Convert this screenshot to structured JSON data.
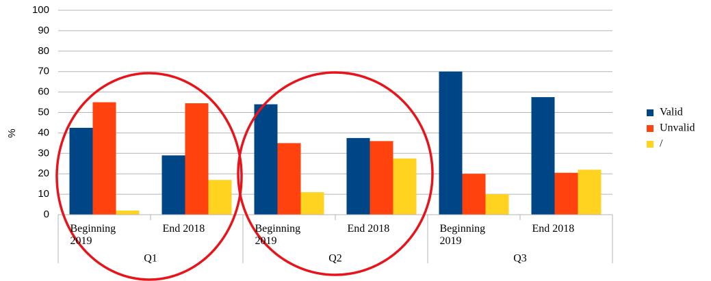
{
  "chart_data": {
    "type": "bar",
    "y_label": "%",
    "groups": [
      "Q1",
      "Q2",
      "Q3"
    ],
    "categories": [
      "Beginning 2019",
      "End 2018",
      "Beginning 2019",
      "End 2018",
      "Beginning 2019",
      "End 2018"
    ],
    "series": [
      {
        "name": "Valid",
        "color": "#004586",
        "values": [
          42.5,
          29,
          54,
          37.5,
          70,
          57.5
        ]
      },
      {
        "name": "Unvalid",
        "color": "#ff420e",
        "values": [
          55,
          54.5,
          35,
          36,
          20,
          20.5
        ]
      },
      {
        "name": "/",
        "color": "#ffd320",
        "values": [
          2,
          17,
          11,
          27.5,
          10,
          22
        ]
      }
    ],
    "ylim": [
      0,
      100
    ],
    "yticks": [
      0,
      10,
      20,
      30,
      40,
      50,
      60,
      70,
      80,
      90,
      100
    ],
    "grid": true,
    "legend": "right"
  }
}
